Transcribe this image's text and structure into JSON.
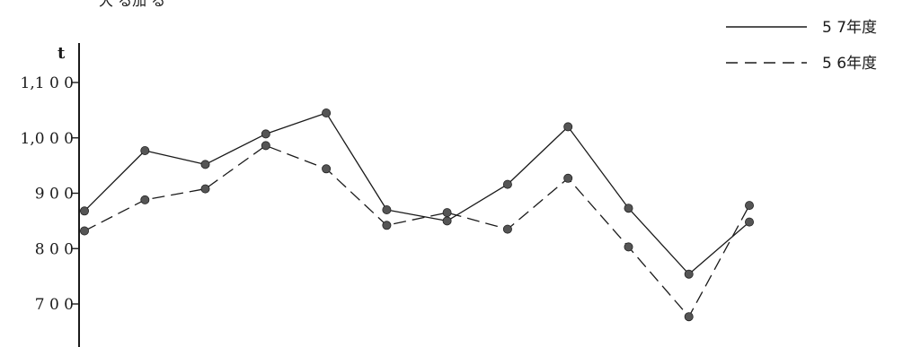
{
  "header_fragment": "大 る加 る",
  "chart_data": {
    "type": "line",
    "title": "",
    "xlabel": "",
    "ylabel": "t",
    "ylim": [
      650,
      1120
    ],
    "yticks": [
      700,
      800,
      900,
      1000,
      1100
    ],
    "ytick_labels": [
      "7 0 0",
      "8 0 0",
      "9 0 0",
      "1,0 0 0",
      "1,1 0 0"
    ],
    "grid": false,
    "legend_position": "top-right",
    "x": [
      1,
      2,
      3,
      4,
      5,
      6,
      7,
      8,
      9,
      10,
      11,
      12
    ],
    "series": [
      {
        "name": "5 7年度",
        "style": "solid",
        "color": "#1a1a1a",
        "values": [
          868,
          977,
          952,
          1007,
          1045,
          870,
          850,
          916,
          1020,
          873,
          754,
          848
        ]
      },
      {
        "name": "5 6年度",
        "style": "dashed",
        "color": "#1a1a1a",
        "values": [
          832,
          888,
          908,
          986,
          944,
          842,
          865,
          835,
          927,
          803,
          677,
          878
        ]
      }
    ]
  }
}
